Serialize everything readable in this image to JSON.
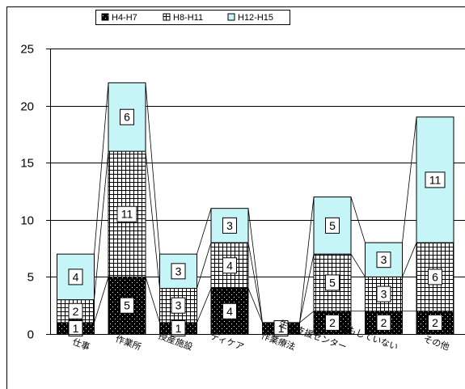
{
  "chart_data": {
    "type": "bar",
    "stacked": true,
    "categories": [
      "仕事",
      "作業所",
      "授産施設",
      "ディケア",
      "作業療法",
      "生活支援センター",
      "何もしていない",
      "その他"
    ],
    "series": [
      {
        "name": "H4-H7",
        "values": [
          1,
          5,
          1,
          4,
          1,
          2,
          2,
          2
        ],
        "pattern": "solid-black-dots",
        "color": "#000000"
      },
      {
        "name": "H8-H11",
        "values": [
          2,
          11,
          3,
          4,
          0,
          5,
          3,
          6
        ],
        "pattern": "grid-hatch",
        "color": "#555555"
      },
      {
        "name": "H12-H15",
        "values": [
          4,
          6,
          3,
          3,
          0,
          5,
          3,
          11
        ],
        "pattern": "solid",
        "color": "#c6f5f7"
      }
    ],
    "yticks": [
      "0",
      "5",
      "10",
      "15",
      "20",
      "25"
    ],
    "ylim": [
      0,
      25
    ],
    "grid": true,
    "series_connector_lines": true,
    "legend_position": "top"
  }
}
